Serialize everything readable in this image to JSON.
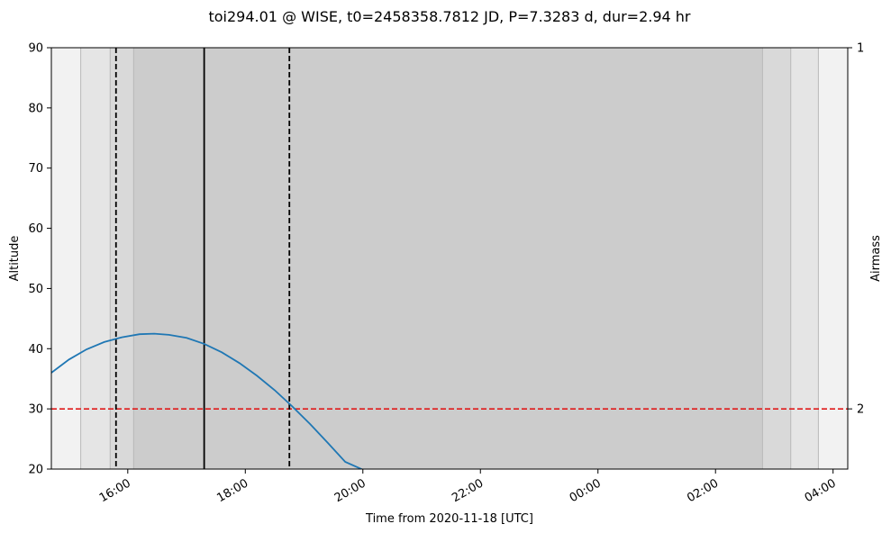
{
  "chart_data": {
    "type": "line",
    "title": "toi294.01 @ WISE, t0=2458358.7812 JD, P=7.3283 d, dur=2.94 hr",
    "xlabel": "Time from 2020-11-18 [UTC]",
    "ylabel": "Altitude",
    "ylabel_right": "Airmass",
    "xlim_hours": [
      14.7,
      28.25
    ],
    "ylim": [
      20,
      90
    ],
    "x_ticks": [
      {
        "hour": 16,
        "label": "16:00"
      },
      {
        "hour": 18,
        "label": "18:00"
      },
      {
        "hour": 20,
        "label": "20:00"
      },
      {
        "hour": 22,
        "label": "22:00"
      },
      {
        "hour": 24,
        "label": "00:00"
      },
      {
        "hour": 26,
        "label": "02:00"
      },
      {
        "hour": 28,
        "label": "04:00"
      }
    ],
    "y_ticks": [
      20,
      30,
      40,
      50,
      60,
      70,
      80,
      90
    ],
    "airmass_ticks": [
      {
        "altitude": 90,
        "label": "1"
      },
      {
        "altitude": 30,
        "label": "2"
      }
    ],
    "twilight_bands": [
      {
        "start": 14.7,
        "end": 15.2,
        "color": "#f2f2f2"
      },
      {
        "start": 15.2,
        "end": 15.7,
        "color": "#e5e5e5"
      },
      {
        "start": 15.7,
        "end": 16.1,
        "color": "#d9d9d9"
      },
      {
        "start": 16.1,
        "end": 26.8,
        "color": "#cccccc"
      },
      {
        "start": 26.8,
        "end": 27.28,
        "color": "#d9d9d9"
      },
      {
        "start": 27.28,
        "end": 27.75,
        "color": "#e5e5e5"
      },
      {
        "start": 27.75,
        "end": 28.25,
        "color": "#f2f2f2"
      }
    ],
    "transit_lines": [
      {
        "hour": 15.8,
        "style": "dashed",
        "color": "#000000"
      },
      {
        "hour": 17.3,
        "style": "solid",
        "color": "#000000"
      },
      {
        "hour": 18.75,
        "style": "dashed",
        "color": "#000000"
      }
    ],
    "altitude_limit": {
      "value": 30,
      "color": "#e01b1b",
      "style": "dashed"
    },
    "series": [
      {
        "color": "#1f77b4",
        "x": [
          14.7,
          15.0,
          15.3,
          15.6,
          15.9,
          16.2,
          16.45,
          16.7,
          17.0,
          17.3,
          17.6,
          17.9,
          18.2,
          18.5,
          18.8,
          19.1,
          19.4,
          19.7,
          20.0
        ],
        "y": [
          36.0,
          38.2,
          39.9,
          41.1,
          41.9,
          42.4,
          42.5,
          42.3,
          41.8,
          40.8,
          39.4,
          37.6,
          35.5,
          33.1,
          30.4,
          27.5,
          24.4,
          21.2,
          19.9
        ]
      }
    ]
  }
}
